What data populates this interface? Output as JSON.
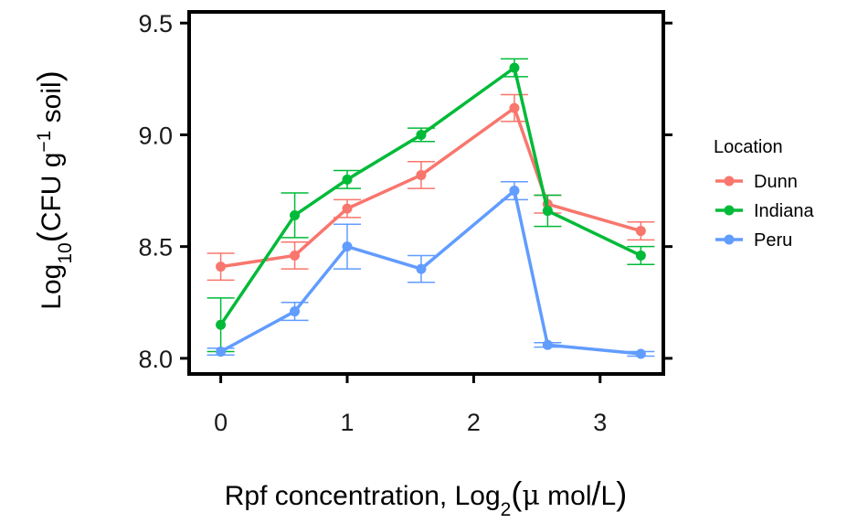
{
  "chart_data": {
    "type": "line",
    "xlabel": {
      "main": "Rpf concentration, Log",
      "sub": "2",
      "open": "(",
      "unit_mu": "μ",
      "unit_mol": " mol",
      "unit_slash": "/",
      "unit_l": "L",
      "close": ")"
    },
    "ylabel": {
      "log": "Log",
      "sub": "10",
      "open": "(",
      "main": "CFU g",
      "sup": "−1",
      "tail": " soil",
      "close": ")"
    },
    "xlim": [
      -0.25,
      3.5
    ],
    "ylim": [
      7.93,
      9.55
    ],
    "x_ticks": [
      {
        "value": 0,
        "label": "0"
      },
      {
        "value": 1,
        "label": "1"
      },
      {
        "value": 2,
        "label": "2"
      },
      {
        "value": 3,
        "label": "3"
      }
    ],
    "y_ticks": [
      {
        "value": 8.0,
        "label": "8.0"
      },
      {
        "value": 8.5,
        "label": "8.5"
      },
      {
        "value": 9.0,
        "label": "9.0"
      },
      {
        "value": 9.5,
        "label": "9.5"
      }
    ],
    "legend": {
      "title": "Location",
      "position": "right"
    },
    "grid": false,
    "series": [
      {
        "name": "Dunn",
        "color": "#F8766D",
        "x": [
          0,
          0.585,
          1,
          1.585,
          2.322,
          2.585,
          3.322
        ],
        "y": [
          8.41,
          8.46,
          8.67,
          8.82,
          9.12,
          8.69,
          8.57
        ],
        "err": [
          0.06,
          0.06,
          0.04,
          0.06,
          0.06,
          0.04,
          0.04
        ]
      },
      {
        "name": "Indiana",
        "color": "#00BA38",
        "x": [
          0,
          0.585,
          1,
          1.585,
          2.322,
          2.585,
          3.322
        ],
        "y": [
          8.15,
          8.64,
          8.8,
          9.0,
          9.3,
          8.66,
          8.46
        ],
        "err": [
          0.12,
          0.1,
          0.04,
          0.03,
          0.04,
          0.07,
          0.04
        ]
      },
      {
        "name": "Peru",
        "color": "#619CFF",
        "x": [
          0,
          0.585,
          1,
          1.585,
          2.322,
          2.585,
          3.322
        ],
        "y": [
          8.03,
          8.21,
          8.5,
          8.4,
          8.75,
          8.06,
          8.02
        ],
        "err": [
          0.015,
          0.04,
          0.1,
          0.06,
          0.04,
          0.01,
          0.01
        ]
      }
    ]
  }
}
